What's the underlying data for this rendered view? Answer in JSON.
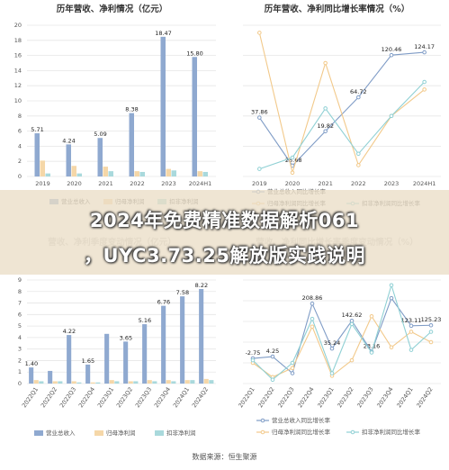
{
  "overlay": {
    "line1": "2024年免费精准数据解析061",
    "line2": "，UYC3.73.25解放版实践说明"
  },
  "source": "数据来源：恒生聚源",
  "colors": {
    "revenue": "#8fa9d0",
    "net_profit": "#f5d7a8",
    "deducted_profit": "#a9d9dc",
    "grid": "#e6e6e6"
  },
  "chart_data": [
    {
      "id": "c1",
      "type": "bar",
      "title": "历年营收、净利情况（亿元）",
      "categories": [
        "2019",
        "2020",
        "2021",
        "2022",
        "2023",
        "2024H1"
      ],
      "ylim": [
        0,
        20
      ],
      "yticks": [
        "0",
        "2",
        "4",
        "6",
        "8",
        "10",
        "12",
        "14",
        "16",
        "18",
        "20"
      ],
      "series": [
        {
          "values": [
            5.71,
            4.24,
            5.09,
            8.38,
            18.47,
            15.8
          ],
          "labels": [
            "5.71",
            "4.24",
            "5.09",
            "8.38",
            "18.47",
            "15.80"
          ],
          "color": "#8fa9d0"
        },
        {
          "values": [
            2.1,
            1.4,
            1.3,
            0.7,
            1.0,
            0.7
          ],
          "color": "#f5d7a8"
        },
        {
          "values": [
            0.4,
            0.4,
            0.7,
            0.6,
            0.8,
            0.6
          ],
          "color": "#a9d9dc"
        }
      ],
      "legend": [
        "营业总收入",
        "归母净利润",
        "扣非净利润"
      ],
      "grid": true
    },
    {
      "id": "c2",
      "type": "line",
      "title": "历年营收、净利同比增长率情况（%）",
      "categories": [
        "2019",
        "2020",
        "2021",
        "2022",
        "2023",
        "2024H1"
      ],
      "ylim": [
        -40,
        160
      ],
      "series": [
        {
          "values": [
            37.86,
            -25.68,
            19.82,
            64.72,
            120.46,
            124.17
          ],
          "labels": [
            "37.86",
            "-25.68",
            "19.82",
            "64.72",
            "120.46",
            "124.17"
          ],
          "color": "#7f9cc6"
        },
        {
          "values": [
            150,
            -35,
            110,
            -25,
            40,
            75
          ],
          "color": "#f2c98a"
        },
        {
          "values": [
            -30,
            -15,
            50,
            -10,
            40,
            85
          ],
          "color": "#8fd0d4"
        }
      ],
      "legend": [
        "营业总收入同比增长率",
        "归母净利润同比增长率",
        "扣非净利润同比增长率"
      ],
      "grid": true
    },
    {
      "id": "c3",
      "type": "bar",
      "title": "营收、净利季度变动情况（亿元）",
      "categories": [
        "2022Q1",
        "2022Q2",
        "2022Q3",
        "2022Q4",
        "2023Q1",
        "2023Q2",
        "2023Q3",
        "2023Q4",
        "2024Q1",
        "2024Q2"
      ],
      "ylim": [
        0,
        9
      ],
      "yticks": [
        "0",
        "1",
        "2",
        "3",
        "4",
        "5",
        "6",
        "7",
        "8",
        "9"
      ],
      "series": [
        {
          "values": [
            1.4,
            1.1,
            4.22,
            1.65,
            4.32,
            3.65,
            5.16,
            6.76,
            7.58,
            8.22
          ],
          "labels": [
            "1.40",
            "",
            "4.22",
            "1.65",
            "",
            "3.65",
            "5.16",
            "6.76",
            "7.58",
            "8.22"
          ],
          "color": "#8fa9d0"
        },
        {
          "values": [
            0.3,
            0.2,
            0.2,
            0.1,
            0.3,
            0.2,
            0.3,
            0.3,
            0.3,
            0.4
          ],
          "color": "#f5d7a8"
        },
        {
          "values": [
            0.2,
            0.2,
            0.1,
            0.1,
            0.2,
            0.2,
            0.2,
            0.2,
            0.3,
            0.3
          ],
          "color": "#a9d9dc"
        }
      ],
      "legend": [
        "营业总收入",
        "归母净利润",
        "扣非净利润"
      ],
      "grid": true
    },
    {
      "id": "c4",
      "type": "line",
      "title": "营收、净利同比增长率季度变动情况（%）",
      "categories": [
        "2022Q1",
        "2022Q2",
        "2022Q3",
        "2022Q4",
        "2023Q1",
        "2023Q2",
        "2023Q3",
        "2023Q4",
        "2024Q1",
        "2024Q2"
      ],
      "ylim": [
        -100,
        300
      ],
      "series": [
        {
          "values": [
            -2.75,
            4.25,
            -60,
            208.86,
            35.24,
            142.62,
            23.16,
            230,
            123.11,
            125.23
          ],
          "labels": [
            "-2.75",
            "4.25",
            "",
            "208.86",
            "35.24",
            "142.62",
            "23.16",
            "",
            "123.11",
            "125.23"
          ],
          "color": "#7f9cc6"
        },
        {
          "values": [
            -20,
            -75,
            -40,
            120,
            -70,
            -10,
            160,
            40,
            100,
            60
          ],
          "color": "#f2c98a"
        },
        {
          "values": [
            -10,
            -85,
            -20,
            150,
            -60,
            130,
            20,
            280,
            30,
            100
          ],
          "color": "#8fd0d4"
        }
      ],
      "legend": [
        "营业总收入同比增长率",
        "归母净利润同比增长率",
        "扣非净利润同比增长率"
      ],
      "grid": true
    }
  ]
}
